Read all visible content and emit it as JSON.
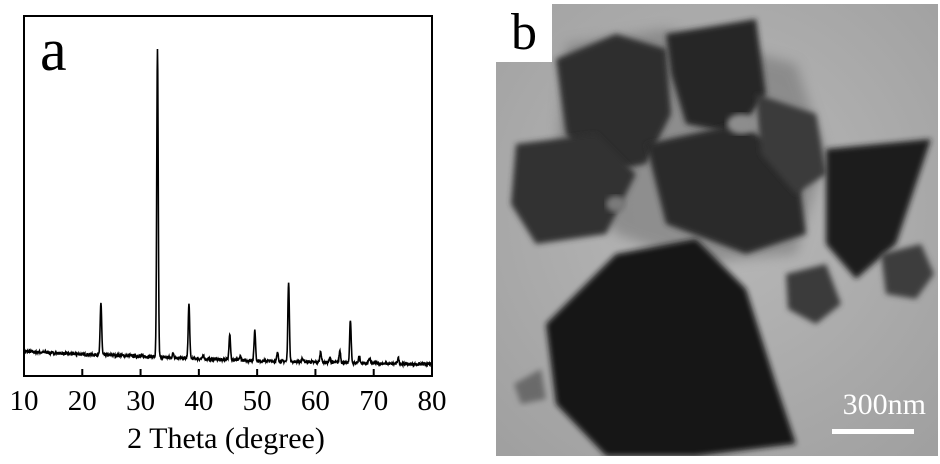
{
  "panel_a": {
    "letter": "a"
  },
  "panel_b": {
    "letter": "b",
    "scale_label": "300nm"
  },
  "chart_data": {
    "type": "line",
    "title": "",
    "xlabel": "2 Theta (degree)",
    "ylabel": "",
    "xlim": [
      10,
      80
    ],
    "ylim": [
      0,
      100
    ],
    "xticks": [
      10,
      20,
      30,
      40,
      50,
      60,
      70,
      80
    ],
    "show_yticks": false,
    "grid": false,
    "baseline": [
      [
        10,
        4.5
      ],
      [
        15,
        4.0
      ],
      [
        20,
        3.6
      ],
      [
        25,
        3.3
      ],
      [
        30,
        3.0
      ],
      [
        35,
        2.6
      ],
      [
        40,
        2.2
      ],
      [
        45,
        1.9
      ],
      [
        50,
        1.6
      ],
      [
        55,
        1.4
      ],
      [
        60,
        1.2
      ],
      [
        65,
        1.0
      ],
      [
        70,
        0.8
      ],
      [
        75,
        0.6
      ],
      [
        80,
        0.5
      ]
    ],
    "peaks": [
      {
        "x": 23.2,
        "y": 19.5
      },
      {
        "x": 32.9,
        "y": 97.0
      },
      {
        "x": 35.6,
        "y": 4.0
      },
      {
        "x": 38.3,
        "y": 19.0
      },
      {
        "x": 40.8,
        "y": 3.2
      },
      {
        "x": 45.3,
        "y": 10.0
      },
      {
        "x": 47.1,
        "y": 3.0
      },
      {
        "x": 49.6,
        "y": 11.0
      },
      {
        "x": 53.5,
        "y": 4.0
      },
      {
        "x": 55.4,
        "y": 26.0
      },
      {
        "x": 57.8,
        "y": 2.5
      },
      {
        "x": 60.9,
        "y": 4.5
      },
      {
        "x": 62.5,
        "y": 2.5
      },
      {
        "x": 64.2,
        "y": 4.8
      },
      {
        "x": 66.0,
        "y": 14.0
      },
      {
        "x": 67.5,
        "y": 3.0
      },
      {
        "x": 69.3,
        "y": 2.5
      },
      {
        "x": 74.2,
        "y": 2.5
      }
    ]
  }
}
